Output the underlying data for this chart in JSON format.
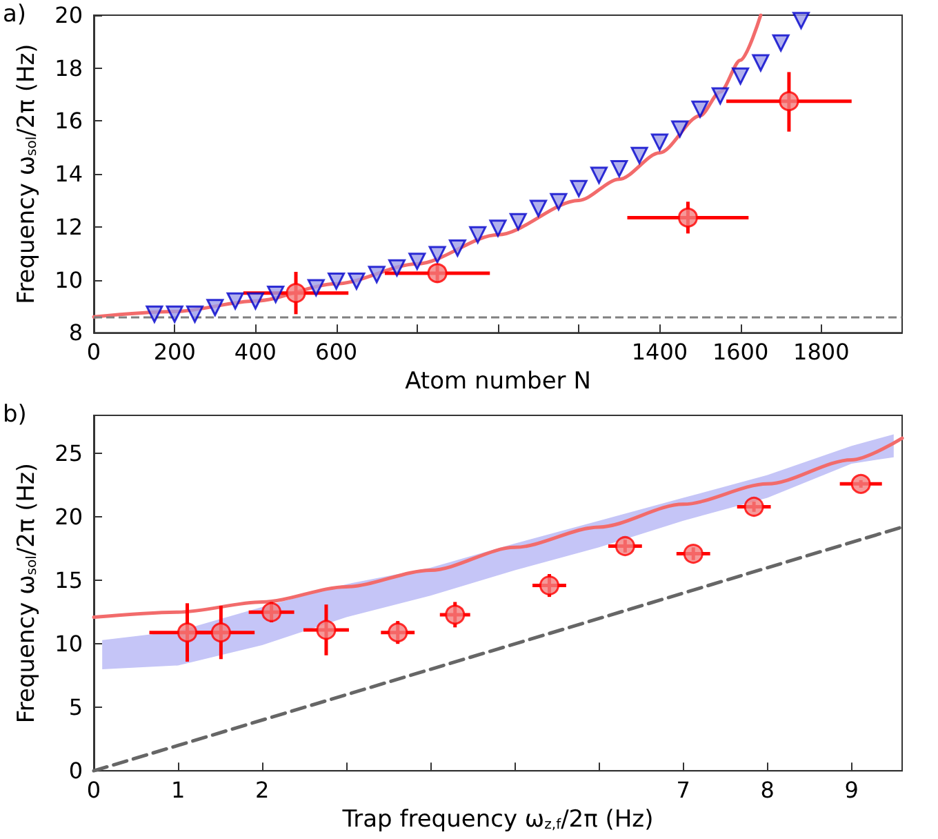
{
  "chart_data": [
    {
      "type": "scatter",
      "ylabel": "Frequency ω$_{sol}$/2π (Hz)",
      "xlabel": "Atom number N",
      "annotations": [
        "a)"
      ],
      "xlim": [
        0,
        2000
      ],
      "xticks": [
        0,
        200,
        400,
        600,
        {
          "value": 800,
          "label": null
        },
        {
          "value": 1000,
          "label": null
        },
        {
          "value": 1200,
          "label": null
        },
        1400,
        1600,
        1800
      ],
      "ylim": [
        8,
        20
      ],
      "yticks": [
        8,
        10,
        12,
        14,
        16,
        18,
        20
      ],
      "grid": false,
      "ref_lines": [
        {
          "axis": "y",
          "value": 8.6,
          "color": "#808080",
          "line_style": "dashed"
        }
      ],
      "series": [
        {
          "type": "line",
          "marker": "none",
          "line_style": "solid",
          "color": "#f26b6b",
          "x": [
            0,
            200,
            400,
            600,
            800,
            1000,
            1200,
            1300,
            1400,
            1500,
            1550,
            1600,
            1650
          ],
          "values": [
            8.6,
            8.8,
            9.2,
            9.85,
            10.6,
            11.7,
            13.0,
            13.8,
            14.8,
            16.2,
            17.1,
            18.3,
            20
          ]
        },
        {
          "marker": "triangle",
          "color": "#9d9de8",
          "x": [
            150,
            200,
            250,
            300,
            350,
            400,
            450,
            500,
            550,
            600,
            650,
            700,
            750,
            800,
            850,
            900,
            950,
            1000,
            1050,
            1100,
            1150,
            1200,
            1250,
            1300,
            1350,
            1400,
            1450,
            1500,
            1550,
            1600,
            1650,
            1700,
            1750
          ],
          "values": [
            8.7,
            8.7,
            8.7,
            8.95,
            9.2,
            9.2,
            9.45,
            null,
            9.7,
            9.95,
            9.95,
            10.2,
            10.45,
            10.7,
            10.95,
            11.2,
            11.7,
            11.95,
            12.2,
            12.7,
            12.95,
            13.45,
            13.95,
            14.2,
            14.7,
            15.2,
            15.7,
            16.45,
            16.95,
            17.7,
            18.2,
            18.95,
            19.8
          ]
        },
        {
          "marker": "circle",
          "color": "#f28080",
          "x": [
            500,
            850,
            1470,
            1720
          ],
          "values": [
            9.5,
            10.25,
            12.35,
            16.75
          ],
          "errors": [
            [
              8.7,
              10.3
            ],
            [
              9.9,
              10.6
            ],
            [
              11.75,
              12.95
            ],
            [
              15.6,
              17.85
            ]
          ],
          "xerrors": [
            130,
            130,
            150,
            155
          ]
        }
      ]
    },
    {
      "type": "scatter",
      "ylabel": "Frequency ω$_{sol}$/2π (Hz)",
      "xlabel": "Trap frequency ω$_{z,f}$/2π (Hz)",
      "annotations": [
        "b)"
      ],
      "xlim": [
        0,
        9.6
      ],
      "xticks": [
        0,
        1,
        2,
        {
          "value": 3,
          "label": null
        },
        {
          "value": 4,
          "label": null
        },
        {
          "value": 5,
          "label": null
        },
        {
          "value": 6,
          "label": null
        },
        7,
        8,
        9
      ],
      "ylim": [
        0,
        28
      ],
      "yticks": [
        0,
        5,
        10,
        15,
        20,
        25
      ],
      "grid": false,
      "series": [
        {
          "type": "area",
          "color": "#c5c5f7",
          "x": [
            0.1,
            1,
            2,
            3,
            4,
            5,
            6,
            7,
            8,
            9,
            9.5
          ],
          "values": [
            null,
            null,
            null,
            null,
            null,
            null,
            null,
            null,
            null,
            null,
            null
          ],
          "lower": [
            8.0,
            8.3,
            9.9,
            12.1,
            13.8,
            15.8,
            17.6,
            19.7,
            21.5,
            24.2,
            24.7
          ],
          "upper": [
            10.3,
            11.0,
            12.9,
            14.7,
            16.0,
            17.9,
            19.7,
            21.5,
            23.3,
            25.6,
            26.5
          ]
        },
        {
          "type": "line",
          "marker": "none",
          "line_style": "dashed",
          "color": "#666666",
          "x": [
            0,
            9.6
          ],
          "values": [
            0,
            19.2
          ]
        },
        {
          "type": "line",
          "marker": "none",
          "line_style": "solid",
          "color": "#f26b6b",
          "x": [
            0,
            1,
            2,
            3,
            4,
            5,
            6,
            7,
            8,
            9,
            9.6
          ],
          "values": [
            12.1,
            12.5,
            13.3,
            14.5,
            15.8,
            17.6,
            19.2,
            21.0,
            22.6,
            24.5,
            26.2
          ]
        },
        {
          "marker": "circle",
          "color": "#f28080",
          "x": [
            1.11,
            1.51,
            2.11,
            2.76,
            3.61,
            4.29,
            5.41,
            6.31,
            7.12,
            7.84,
            9.11
          ],
          "values": [
            10.9,
            10.9,
            12.5,
            11.1,
            10.9,
            12.3,
            14.6,
            17.7,
            17.1,
            20.8,
            22.6
          ],
          "errors": [
            [
              8.6,
              13.2
            ],
            [
              8.8,
              13.0
            ],
            [
              11.7,
              13.3
            ],
            [
              9.1,
              13.1
            ],
            [
              10.0,
              11.8
            ],
            [
              11.3,
              13.3
            ],
            [
              13.7,
              15.5
            ],
            [
              17.2,
              18.2
            ],
            [
              16.6,
              17.6
            ],
            [
              20.4,
              21.2
            ],
            [
              22.3,
              22.9
            ]
          ],
          "xerrors": [
            0.45,
            0.4,
            0.27,
            0.27,
            0.2,
            0.18,
            0.2,
            0.2,
            0.2,
            0.2,
            0.25
          ]
        }
      ]
    }
  ]
}
